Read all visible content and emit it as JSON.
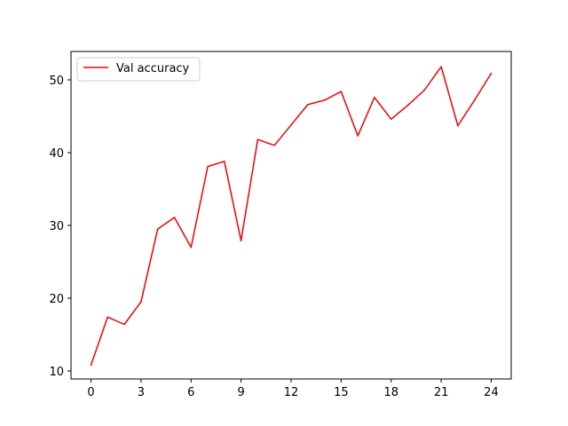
{
  "chart_data": {
    "type": "line",
    "title": "",
    "xlabel": "",
    "ylabel": "",
    "x": [
      0,
      1,
      2,
      3,
      4,
      5,
      6,
      7,
      8,
      9,
      10,
      11,
      12,
      13,
      14,
      15,
      16,
      17,
      18,
      19,
      20,
      21,
      22,
      23,
      24
    ],
    "xlim": [
      -1.2,
      25.2
    ],
    "ylim": [
      8.9,
      53.9
    ],
    "x_ticks": [
      0,
      3,
      6,
      9,
      12,
      15,
      18,
      21,
      24
    ],
    "y_ticks": [
      10,
      20,
      30,
      40,
      50
    ],
    "x_tick_labels": [
      "0",
      "3",
      "6",
      "9",
      "12",
      "15",
      "18",
      "21",
      "24"
    ],
    "y_tick_labels": [
      "10",
      "20",
      "30",
      "40",
      "50"
    ],
    "grid": false,
    "legend_position": "upper-left",
    "series": [
      {
        "name": "Val accuracy",
        "color": "#ff0000",
        "values": [
          10.8,
          17.4,
          16.4,
          19.5,
          29.5,
          31.1,
          27.0,
          38.1,
          38.8,
          27.9,
          41.8,
          41.0,
          43.8,
          46.6,
          47.2,
          48.4,
          42.3,
          47.6,
          44.6,
          46.5,
          48.6,
          51.8,
          43.7,
          47.2,
          50.9
        ]
      }
    ]
  }
}
